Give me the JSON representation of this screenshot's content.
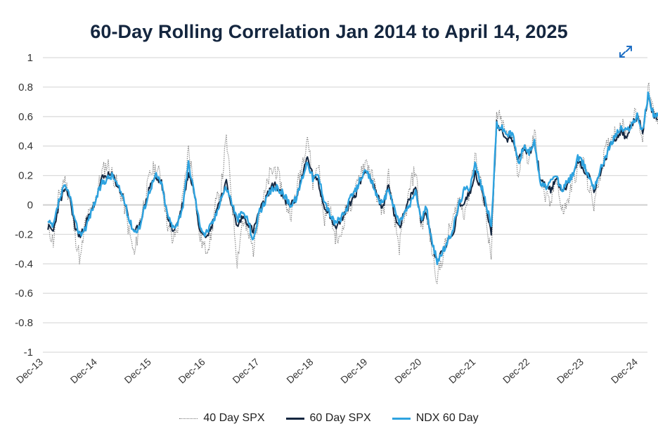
{
  "chart_data": {
    "type": "line",
    "title": "60-Day Rolling Correlation Jan 2014 to April 14, 2025",
    "xlabel": "",
    "ylabel": "",
    "ylim": [
      -1,
      1
    ],
    "yticks": [
      "1",
      "0.8",
      "0.6",
      "0.4",
      "0.2",
      "0",
      "-0.2",
      "-0.4",
      "-0.6",
      "-0.8",
      "-1"
    ],
    "ytick_values": [
      1,
      0.8,
      0.6,
      0.4,
      0.2,
      0,
      -0.2,
      -0.4,
      -0.6,
      -0.8,
      -1
    ],
    "xticks": [
      "Dec-13",
      "Dec-14",
      "Dec-15",
      "Dec-16",
      "Dec-17",
      "Dec-18",
      "Dec-19",
      "Dec-20",
      "Dec-21",
      "Dec-22",
      "Dec-23",
      "Dec-24"
    ],
    "xtick_values": [
      2013.92,
      2014.92,
      2015.92,
      2016.92,
      2017.92,
      2018.92,
      2019.92,
      2020.92,
      2021.92,
      2022.92,
      2023.92,
      2024.92
    ],
    "xlim": [
      2013.92,
      2025.28
    ],
    "grid": true,
    "legend_position": "bottom",
    "x": [
      2014.0,
      2014.1,
      2014.2,
      2014.3,
      2014.4,
      2014.5,
      2014.6,
      2014.7,
      2014.8,
      2014.9,
      2015.0,
      2015.1,
      2015.2,
      2015.3,
      2015.4,
      2015.5,
      2015.6,
      2015.7,
      2015.8,
      2015.9,
      2016.0,
      2016.1,
      2016.2,
      2016.3,
      2016.4,
      2016.5,
      2016.6,
      2016.7,
      2016.8,
      2016.9,
      2017.0,
      2017.1,
      2017.2,
      2017.3,
      2017.4,
      2017.5,
      2017.6,
      2017.7,
      2017.8,
      2017.9,
      2018.0,
      2018.1,
      2018.2,
      2018.3,
      2018.4,
      2018.5,
      2018.6,
      2018.7,
      2018.8,
      2018.9,
      2019.0,
      2019.1,
      2019.2,
      2019.3,
      2019.4,
      2019.5,
      2019.6,
      2019.7,
      2019.8,
      2019.9,
      2020.0,
      2020.1,
      2020.2,
      2020.3,
      2020.4,
      2020.5,
      2020.6,
      2020.7,
      2020.8,
      2020.9,
      2021.0,
      2021.1,
      2021.2,
      2021.3,
      2021.4,
      2021.5,
      2021.6,
      2021.7,
      2021.8,
      2021.9,
      2022.0,
      2022.1,
      2022.2,
      2022.3,
      2022.4,
      2022.5,
      2022.6,
      2022.7,
      2022.8,
      2022.9,
      2023.0,
      2023.1,
      2023.2,
      2023.3,
      2023.4,
      2023.5,
      2023.6,
      2023.7,
      2023.8,
      2023.9,
      2024.0,
      2024.1,
      2024.2,
      2024.3,
      2024.4,
      2024.5,
      2024.6,
      2024.7,
      2024.8,
      2024.9,
      2025.0,
      2025.1,
      2025.2,
      2025.28
    ],
    "series": [
      {
        "name": "40 Day SPX",
        "color": "#777777",
        "style": "dotted",
        "values": [
          -0.15,
          -0.25,
          0.05,
          0.18,
          0.05,
          -0.2,
          -0.38,
          -0.1,
          -0.05,
          0.08,
          0.22,
          0.28,
          0.2,
          0.12,
          0.02,
          -0.18,
          -0.35,
          -0.1,
          0.05,
          0.22,
          0.25,
          0.18,
          -0.1,
          -0.25,
          -0.15,
          0.05,
          0.38,
          0.15,
          -0.2,
          -0.3,
          -0.25,
          0.0,
          0.1,
          0.45,
          0.05,
          -0.38,
          -0.1,
          -0.2,
          -0.3,
          -0.05,
          0.05,
          0.2,
          0.25,
          0.15,
          0.0,
          -0.05,
          0.1,
          0.28,
          0.48,
          0.15,
          0.3,
          -0.1,
          0.0,
          -0.2,
          -0.25,
          -0.05,
          0.0,
          0.1,
          0.25,
          0.3,
          0.18,
          0.05,
          -0.05,
          0.2,
          -0.1,
          -0.28,
          -0.1,
          0.12,
          0.25,
          -0.15,
          -0.05,
          -0.3,
          -0.5,
          -0.35,
          -0.2,
          -0.1,
          0.05,
          -0.05,
          0.1,
          0.35,
          0.15,
          -0.05,
          -0.38,
          0.62,
          0.55,
          0.45,
          0.5,
          0.2,
          0.4,
          0.28,
          0.5,
          0.18,
          0.05,
          0.0,
          0.22,
          -0.05,
          0.0,
          0.15,
          0.25,
          0.3,
          0.12,
          0.0,
          0.2,
          0.35,
          0.45,
          0.5,
          0.55,
          0.48,
          0.58,
          0.62,
          0.45,
          0.8,
          0.62,
          0.55
        ]
      },
      {
        "name": "60 Day SPX",
        "color": "#14263f",
        "style": "solid",
        "values": [
          -0.15,
          -0.18,
          0.0,
          0.1,
          0.06,
          -0.15,
          -0.22,
          -0.12,
          -0.05,
          0.05,
          0.18,
          0.2,
          0.2,
          0.12,
          0.05,
          -0.1,
          -0.2,
          -0.12,
          0.0,
          0.15,
          0.18,
          0.15,
          -0.05,
          -0.18,
          -0.12,
          0.02,
          0.22,
          0.1,
          -0.15,
          -0.2,
          -0.18,
          -0.05,
          0.05,
          0.15,
          0.0,
          -0.15,
          -0.08,
          -0.12,
          -0.18,
          -0.05,
          0.02,
          0.1,
          0.15,
          0.08,
          0.02,
          0.0,
          0.05,
          0.2,
          0.32,
          0.2,
          0.15,
          0.0,
          -0.05,
          -0.15,
          -0.12,
          -0.05,
          0.02,
          0.08,
          0.18,
          0.25,
          0.15,
          0.05,
          -0.02,
          0.15,
          -0.05,
          -0.15,
          -0.05,
          0.05,
          0.12,
          -0.1,
          -0.05,
          -0.25,
          -0.38,
          -0.3,
          -0.25,
          -0.2,
          0.0,
          0.02,
          0.08,
          0.22,
          0.12,
          0.0,
          -0.2,
          0.55,
          0.5,
          0.45,
          0.45,
          0.3,
          0.38,
          0.35,
          0.42,
          0.2,
          0.12,
          0.1,
          0.18,
          0.1,
          0.12,
          0.2,
          0.3,
          0.25,
          0.2,
          0.1,
          0.2,
          0.3,
          0.4,
          0.45,
          0.5,
          0.45,
          0.55,
          0.6,
          0.5,
          0.72,
          0.62,
          0.58
        ]
      },
      {
        "name": "NDX 60 Day",
        "color": "#2ea3e0",
        "style": "solid",
        "values": [
          -0.12,
          -0.15,
          0.02,
          0.12,
          0.08,
          -0.12,
          -0.2,
          -0.15,
          -0.05,
          0.05,
          0.15,
          0.18,
          0.2,
          0.12,
          0.05,
          -0.1,
          -0.18,
          -0.15,
          0.0,
          0.12,
          0.2,
          0.15,
          -0.05,
          -0.15,
          -0.12,
          0.0,
          0.28,
          0.1,
          -0.12,
          -0.2,
          -0.15,
          -0.08,
          0.05,
          0.12,
          0.02,
          -0.1,
          -0.05,
          -0.1,
          -0.25,
          -0.05,
          0.0,
          0.08,
          0.12,
          0.1,
          0.05,
          0.0,
          0.05,
          0.18,
          0.3,
          0.18,
          0.2,
          0.05,
          -0.05,
          -0.12,
          -0.1,
          -0.05,
          0.05,
          0.1,
          0.2,
          0.22,
          0.15,
          0.05,
          0.0,
          0.12,
          -0.02,
          -0.12,
          -0.05,
          0.0,
          0.1,
          -0.1,
          -0.02,
          -0.25,
          -0.38,
          -0.32,
          -0.25,
          -0.15,
          0.0,
          0.1,
          0.12,
          0.28,
          0.15,
          0.02,
          -0.15,
          0.55,
          0.52,
          0.48,
          0.48,
          0.28,
          0.4,
          0.35,
          0.45,
          0.15,
          0.12,
          0.15,
          0.2,
          0.1,
          0.15,
          0.2,
          0.32,
          0.28,
          0.2,
          0.12,
          0.22,
          0.32,
          0.4,
          0.48,
          0.52,
          0.5,
          0.55,
          0.6,
          0.5,
          0.75,
          0.62,
          0.6
        ]
      }
    ]
  },
  "ui": {
    "expand_icon": "expand-arrows-icon",
    "accent_color": "#1f6fc4"
  }
}
